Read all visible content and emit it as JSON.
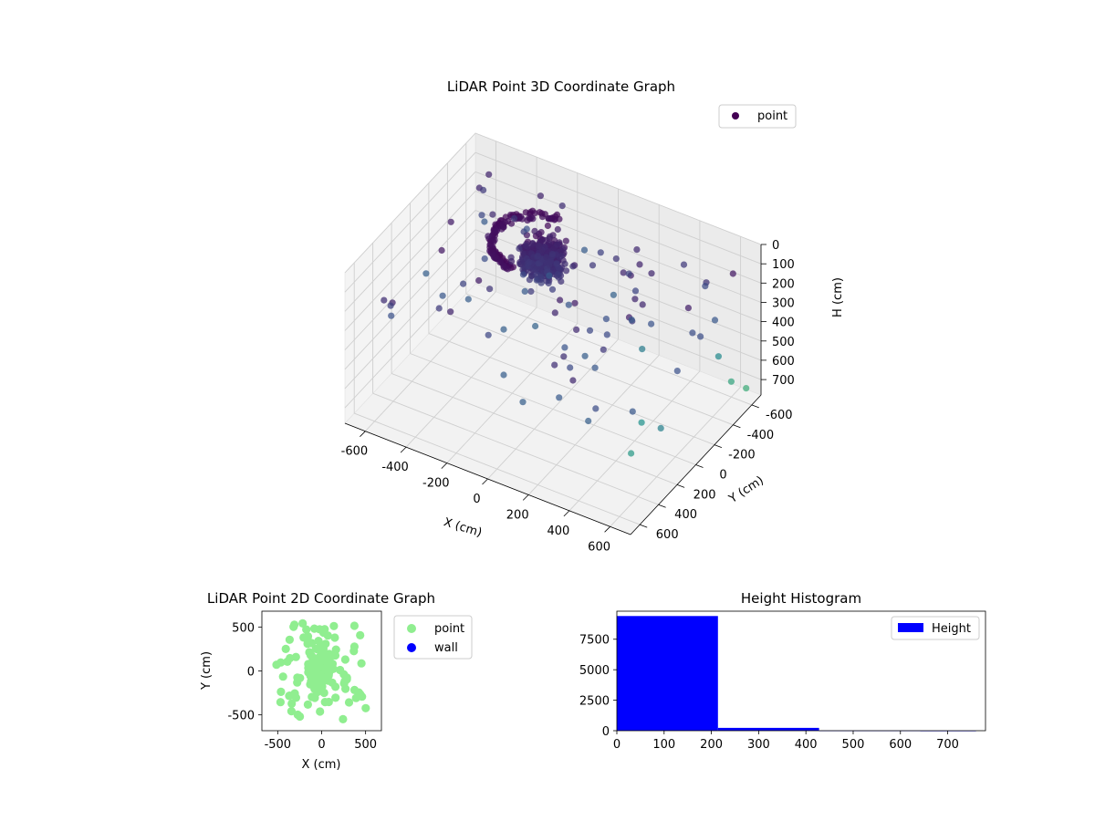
{
  "chart_data": [
    {
      "type": "scatter3d",
      "title": "LiDAR Point 3D Coordinate Graph",
      "xlabel": "X (cm)",
      "ylabel": "Y (cm)",
      "zlabel": "H (cm)",
      "xlim": [
        -700,
        700
      ],
      "ylim": [
        -700,
        700
      ],
      "zlim": [
        0,
        780
      ],
      "z_inverted": true,
      "xticks": [
        "-600",
        "-400",
        "-200",
        "0",
        "200",
        "400",
        "600"
      ],
      "yticks": [
        "-600",
        "-400",
        "-200",
        "0",
        "200",
        "400",
        "600"
      ],
      "zticks": [
        "0",
        "100",
        "200",
        "300",
        "400",
        "500",
        "600",
        "700"
      ],
      "colormap": "viridis",
      "legend": {
        "position": "top-right",
        "entries": [
          {
            "label": "point",
            "color": "#440154"
          }
        ]
      },
      "grid": true
    },
    {
      "type": "scatter",
      "title": "LiDAR Point 2D Coordinate Graph",
      "xlabel": "X (cm)",
      "ylabel": "Y (cm)",
      "xlim": [
        -680,
        680
      ],
      "ylim": [
        -680,
        680
      ],
      "xticks": [
        "-500",
        "0",
        "500"
      ],
      "yticks": [
        "-500",
        "0",
        "500"
      ],
      "legend": {
        "position": "outside-right",
        "entries": [
          {
            "label": "point",
            "color": "#90ee90"
          },
          {
            "label": "wall",
            "color": "#0000ff"
          }
        ]
      }
    },
    {
      "type": "bar",
      "title": "Height Histogram",
      "legend": {
        "position": "top-right",
        "entries": [
          {
            "label": "Height",
            "color": "#0000ff"
          }
        ]
      },
      "xlim": [
        0,
        780
      ],
      "ylim": [
        0,
        9800
      ],
      "xticks": [
        "0",
        "100",
        "200",
        "300",
        "400",
        "500",
        "600",
        "700"
      ],
      "yticks": [
        "0",
        "2500",
        "5000",
        "7500"
      ],
      "bins": [
        {
          "x0": 0,
          "x1": 214,
          "count": 9400
        },
        {
          "x0": 214,
          "x1": 428,
          "count": 230
        },
        {
          "x0": 428,
          "x1": 642,
          "count": 8
        },
        {
          "x0": 642,
          "x1": 760,
          "count": 3
        }
      ],
      "bar_color": "#0000ff"
    }
  ]
}
